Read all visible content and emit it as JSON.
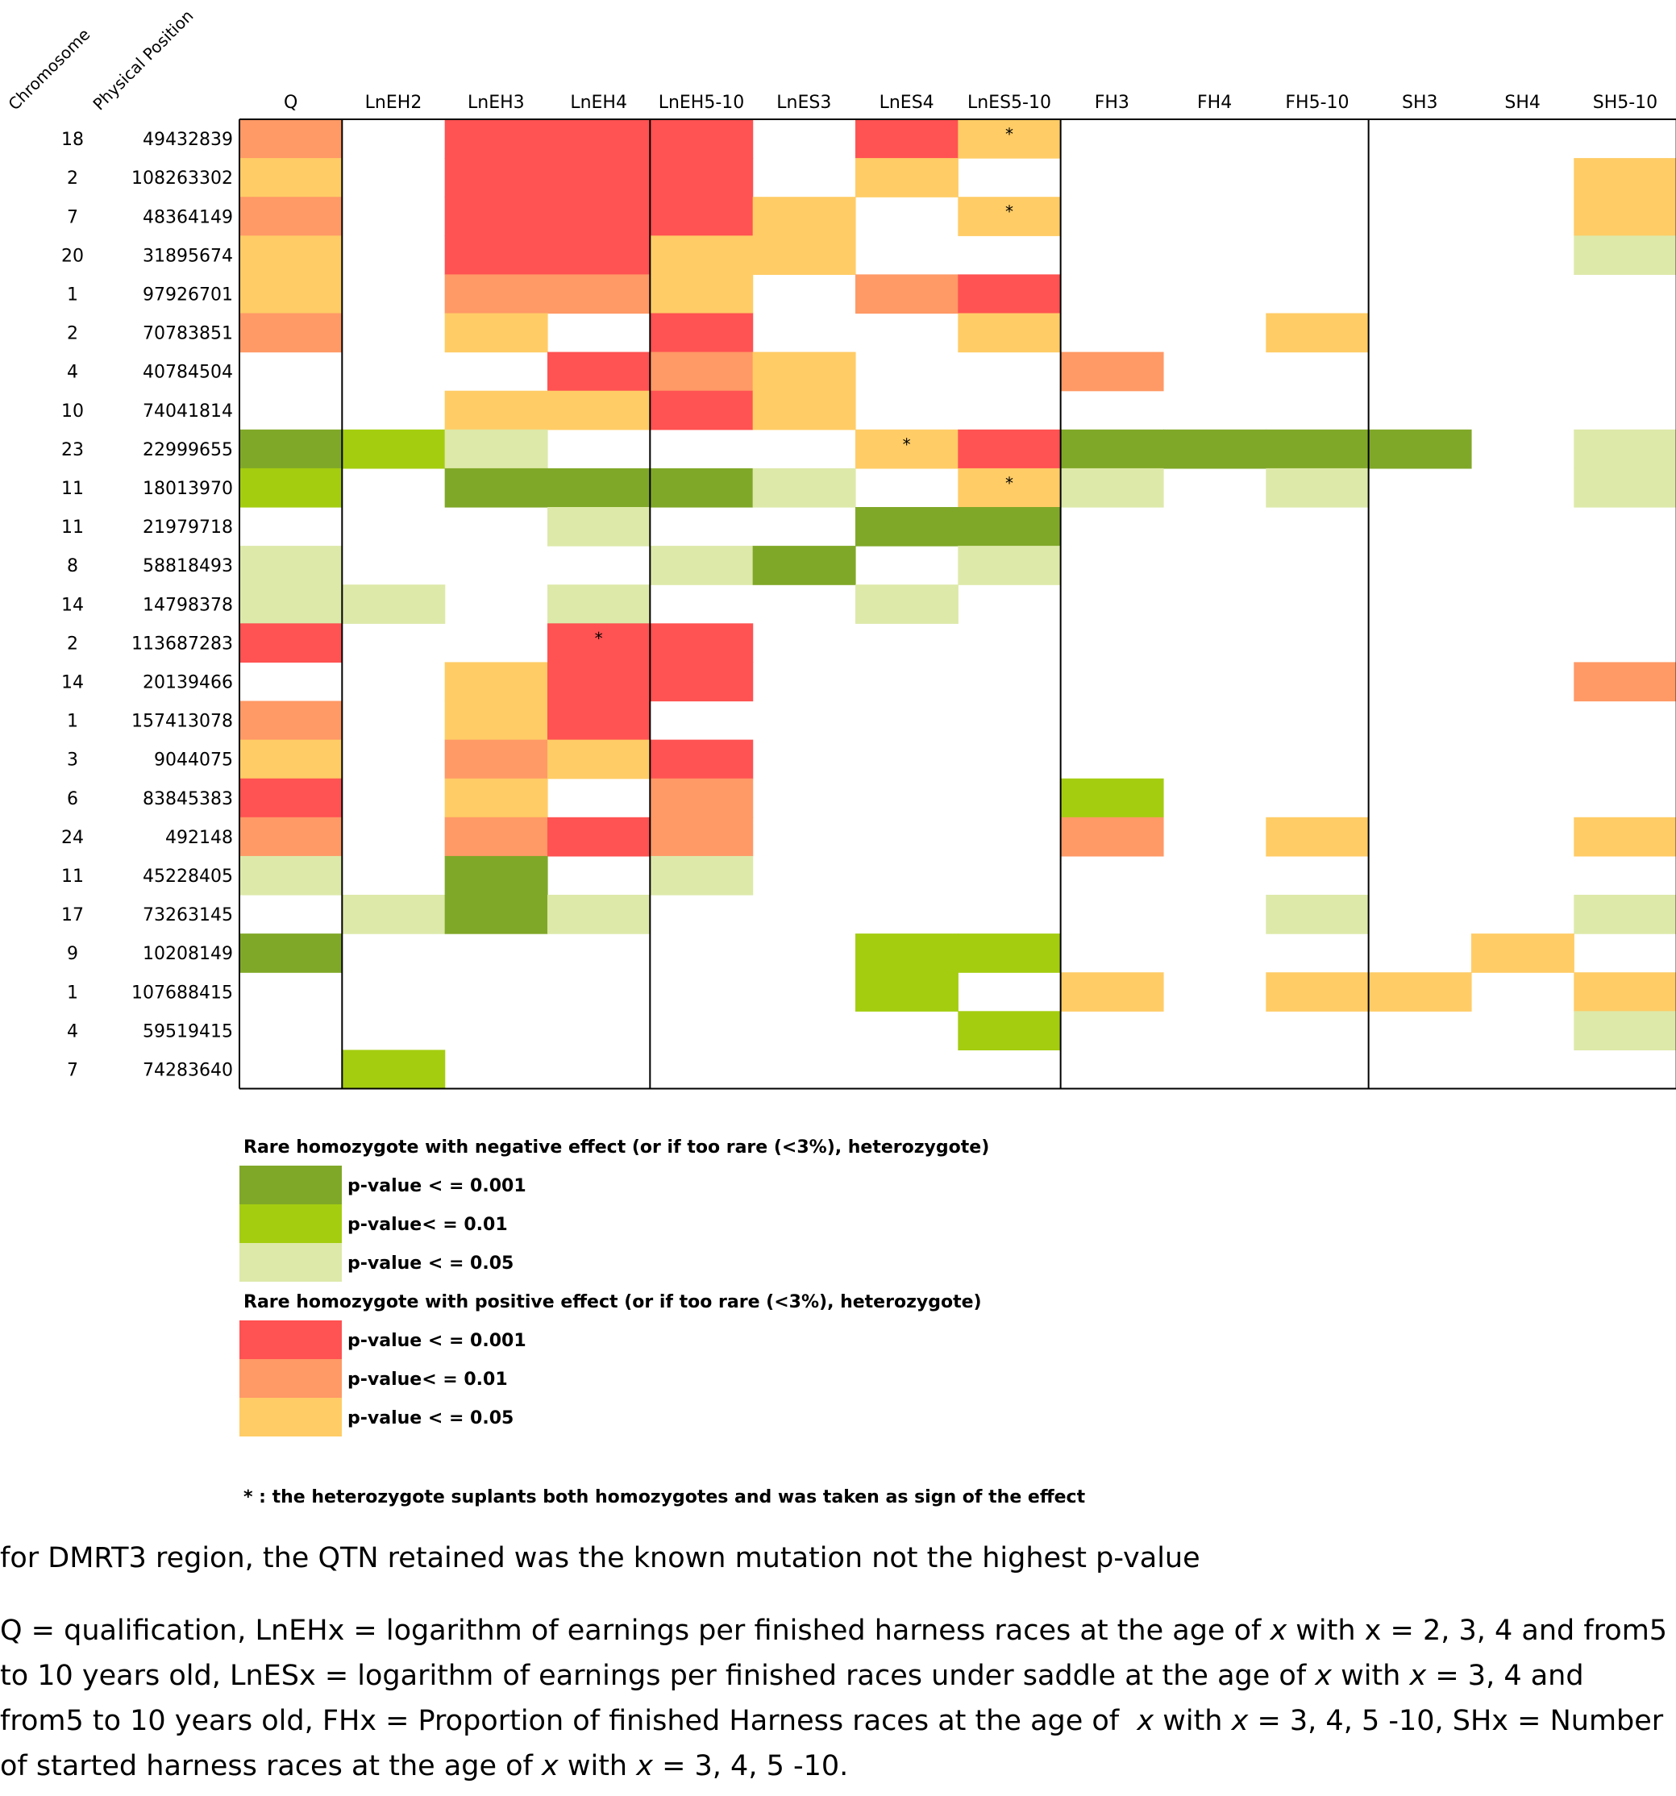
{
  "chart_data": {
    "type": "heatmap",
    "row_header_labels": [
      "Chromosome",
      "Physical Position"
    ],
    "columns": [
      "Q",
      "LnEH2",
      "LnEH3",
      "LnEH4",
      "LnEH5-10",
      "LnES3",
      "LnES4",
      "LnES5-10",
      "FH3",
      "FH4",
      "FH5-10",
      "SH3",
      "SH4",
      "SH5-10"
    ],
    "rows": [
      {
        "chromosome": "18",
        "position": "49432839",
        "cells": [
          "P2",
          "",
          "P1",
          "P1",
          "P1",
          "",
          "P1",
          "P3",
          "",
          "",
          "",
          "",
          "",
          ""
        ],
        "stars": [
          7
        ]
      },
      {
        "chromosome": "2",
        "position": "108263302",
        "cells": [
          "P3",
          "",
          "P1",
          "P1",
          "P1",
          "",
          "P3",
          "",
          "",
          "",
          "",
          "",
          "",
          "P3"
        ],
        "stars": []
      },
      {
        "chromosome": "7",
        "position": "48364149",
        "cells": [
          "P2",
          "",
          "P1",
          "P1",
          "P1",
          "P3",
          "",
          "P3",
          "",
          "",
          "",
          "",
          "",
          "P3"
        ],
        "stars": [
          7
        ]
      },
      {
        "chromosome": "20",
        "position": "31895674",
        "cells": [
          "P3",
          "",
          "P1",
          "P1",
          "P3",
          "P3",
          "",
          "",
          "",
          "",
          "",
          "",
          "",
          "N3"
        ],
        "stars": []
      },
      {
        "chromosome": "1",
        "position": "97926701",
        "cells": [
          "P3",
          "",
          "P2",
          "P2",
          "P3",
          "",
          "P2",
          "P1",
          "",
          "",
          "",
          "",
          "",
          ""
        ],
        "stars": []
      },
      {
        "chromosome": "2",
        "position": "70783851",
        "cells": [
          "P2",
          "",
          "P3",
          "",
          "P1",
          "",
          "",
          "P3",
          "",
          "",
          "P3",
          "",
          "",
          ""
        ],
        "stars": []
      },
      {
        "chromosome": "4",
        "position": "40784504",
        "cells": [
          "",
          "",
          "",
          "P1",
          "P2",
          "P3",
          "",
          "",
          "P2",
          "",
          "",
          "",
          "",
          ""
        ],
        "stars": []
      },
      {
        "chromosome": "10",
        "position": "74041814",
        "cells": [
          "",
          "",
          "P3",
          "P3",
          "P1",
          "P3",
          "",
          "",
          "",
          "",
          "",
          "",
          "",
          ""
        ],
        "stars": []
      },
      {
        "chromosome": "23",
        "position": "22999655",
        "cells": [
          "N1",
          "N2",
          "N3",
          "",
          "",
          "",
          "P3",
          "P1",
          "N1",
          "N1",
          "N1",
          "N1",
          "",
          "N3"
        ],
        "stars": [
          6
        ]
      },
      {
        "chromosome": "11",
        "position": "18013970",
        "cells": [
          "N2",
          "",
          "N1",
          "N1",
          "N1",
          "N3",
          "",
          "P3",
          "N3",
          "",
          "N3",
          "",
          "",
          "N3"
        ],
        "stars": [
          7
        ]
      },
      {
        "chromosome": "11",
        "position": "21979718",
        "cells": [
          "",
          "",
          "",
          "N3",
          "",
          "",
          "N1",
          "N1",
          "",
          "",
          "",
          "",
          "",
          ""
        ],
        "stars": []
      },
      {
        "chromosome": "8",
        "position": "58818493",
        "cells": [
          "N3",
          "",
          "",
          "",
          "N3",
          "N1",
          "",
          "N3",
          "",
          "",
          "",
          "",
          "",
          ""
        ],
        "stars": []
      },
      {
        "chromosome": "14",
        "position": "14798378",
        "cells": [
          "N3",
          "N3",
          "",
          "N3",
          "",
          "",
          "N3",
          "",
          "",
          "",
          "",
          "",
          "",
          ""
        ],
        "stars": []
      },
      {
        "chromosome": "2",
        "position": "113687283",
        "cells": [
          "P1",
          "",
          "",
          "P1",
          "P1",
          "",
          "",
          "",
          "",
          "",
          "",
          "",
          "",
          ""
        ],
        "stars": [
          3
        ]
      },
      {
        "chromosome": "14",
        "position": "20139466",
        "cells": [
          "",
          "",
          "P3",
          "P1",
          "P1",
          "",
          "",
          "",
          "",
          "",
          "",
          "",
          "",
          "P2"
        ],
        "stars": []
      },
      {
        "chromosome": "1",
        "position": "157413078",
        "cells": [
          "P2",
          "",
          "P3",
          "P1",
          "",
          "",
          "",
          "",
          "",
          "",
          "",
          "",
          "",
          ""
        ],
        "stars": []
      },
      {
        "chromosome": "3",
        "position": "9044075",
        "cells": [
          "P3",
          "",
          "P2",
          "P3",
          "P1",
          "",
          "",
          "",
          "",
          "",
          "",
          "",
          "",
          ""
        ],
        "stars": []
      },
      {
        "chromosome": "6",
        "position": "83845383",
        "cells": [
          "P1",
          "",
          "P3",
          "",
          "P2",
          "",
          "",
          "",
          "N2",
          "",
          "",
          "",
          "",
          ""
        ],
        "stars": []
      },
      {
        "chromosome": "24",
        "position": "492148",
        "cells": [
          "P2",
          "",
          "P2",
          "P1",
          "P2",
          "",
          "",
          "",
          "P2",
          "",
          "P3",
          "",
          "",
          "P3"
        ],
        "stars": []
      },
      {
        "chromosome": "11",
        "position": "45228405",
        "cells": [
          "N3",
          "",
          "N1",
          "",
          "N3",
          "",
          "",
          "",
          "",
          "",
          "",
          "",
          "",
          ""
        ],
        "stars": []
      },
      {
        "chromosome": "17",
        "position": "73263145",
        "cells": [
          "",
          "N3",
          "N1",
          "N3",
          "",
          "",
          "",
          "",
          "",
          "",
          "N3",
          "",
          "",
          "N3"
        ],
        "stars": []
      },
      {
        "chromosome": "9",
        "position": "10208149",
        "cells": [
          "N1",
          "",
          "",
          "",
          "",
          "",
          "N2",
          "N2",
          "",
          "",
          "",
          "",
          "P3",
          ""
        ],
        "stars": []
      },
      {
        "chromosome": "1",
        "position": "107688415",
        "cells": [
          "",
          "",
          "",
          "",
          "",
          "",
          "N2",
          "",
          "P3",
          "",
          "P3",
          "P3",
          "",
          "P3"
        ],
        "stars": []
      },
      {
        "chromosome": "4",
        "position": "59519415",
        "cells": [
          "",
          "",
          "",
          "",
          "",
          "",
          "",
          "N2",
          "",
          "",
          "",
          "",
          "",
          "N3"
        ],
        "stars": []
      },
      {
        "chromosome": "7",
        "position": "74283640",
        "cells": [
          "",
          "N2",
          "",
          "",
          "",
          "",
          "",
          "",
          "",
          "",
          "",
          "",
          "",
          ""
        ],
        "stars": []
      }
    ],
    "star_symbol": "*",
    "colors": {
      "N1": "#80a828",
      "N2": "#a4cd10",
      "N3": "#dde9a9",
      "P1": "#ff5252",
      "P2": "#ff9966",
      "P3": "#ffcc66"
    },
    "legend": {
      "negative_title": "Rare homozygote with negative effect (or if too rare (<3%), heterozygote)",
      "positive_title": "Rare homozygote with positive effect (or if too rare (<3%), heterozygote)",
      "negative_items": [
        {
          "key": "N1",
          "label": "p-value < = 0.001"
        },
        {
          "key": "N2",
          "label": "p-value< = 0.01"
        },
        {
          "key": "N3",
          "label": "p-value < = 0.05"
        }
      ],
      "positive_items": [
        {
          "key": "P1",
          "label": "p-value < = 0.001"
        },
        {
          "key": "P2",
          "label": "p-value< = 0.01"
        },
        {
          "key": "P3",
          "label": "p-value < = 0.05"
        }
      ],
      "star_note": "* : the heterozygote suplants both homozygotes and was taken as sign of the effect"
    }
  },
  "footnotes": {
    "dmrt3": "for DMRT3 region, the QTN retained was the known mutation not the highest p-value",
    "abbrev_1": "Q = qualification, LnEHx = logarithm of earnings per finished harness races at the age of ",
    "abbrev_x1": "x",
    "abbrev_2": " with x = 2, 3, 4 and from5\nto 10 years old, LnESx = logarithm of earnings per finished races under saddle at the age of ",
    "abbrev_x2": "x",
    "abbrev_3": " with ",
    "abbrev_x3": "x",
    "abbrev_4": " = 3, 4 and\nfrom5 to 10 years old, FHx = Proportion of finished Harness races at the age of  ",
    "abbrev_x4": "x",
    "abbrev_5": " with ",
    "abbrev_x5": "x",
    "abbrev_6": " = 3, 4, 5 -10, SHx = Number\nof started harness races at the age of ",
    "abbrev_x6": "x",
    "abbrev_7": " with ",
    "abbrev_x7": "x",
    "abbrev_8": " = 3, 4, 5 -10."
  }
}
